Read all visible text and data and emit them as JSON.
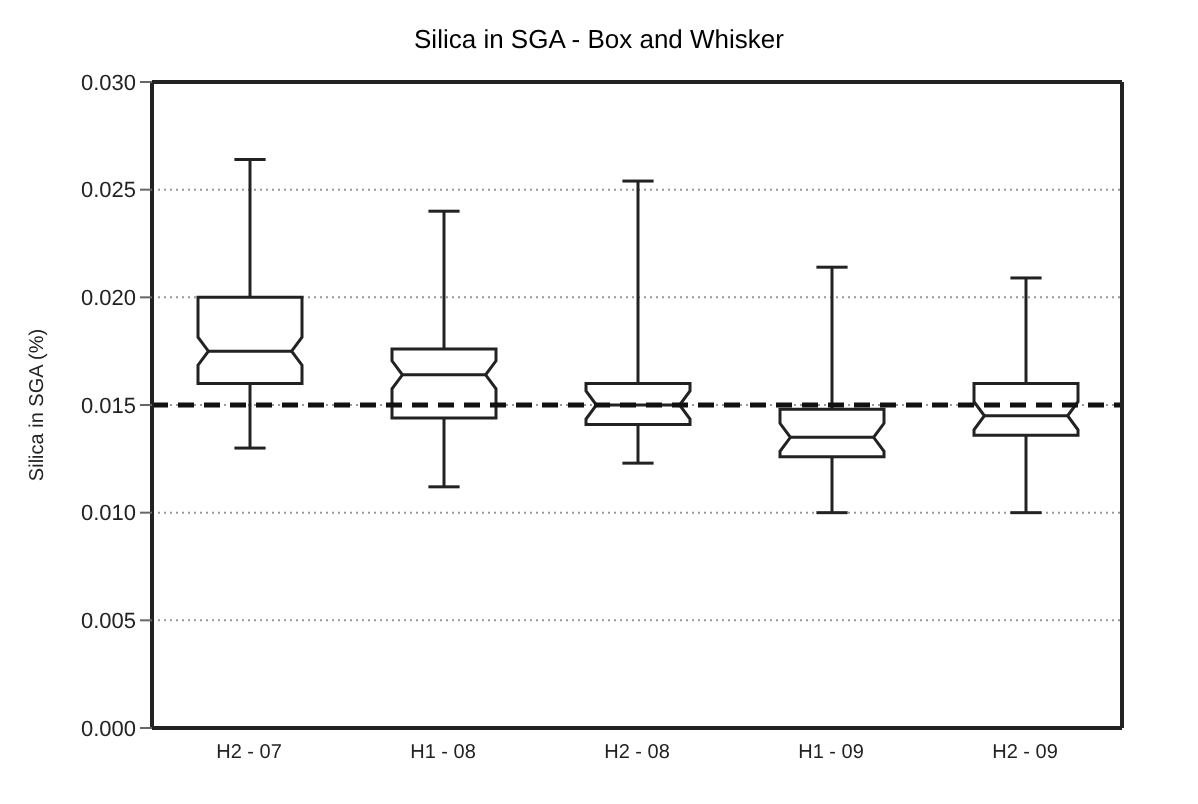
{
  "chart_data": {
    "type": "box",
    "title": "Silica in SGA - Box and Whisker",
    "ylabel": "Silica in SGA (%)",
    "categories": [
      "H2 - 07",
      "H1 - 08",
      "H2 - 08",
      "H1 - 09",
      "H2 - 09"
    ],
    "boxes": [
      {
        "low": 0.013,
        "q1": 0.016,
        "median": 0.0175,
        "q3": 0.02,
        "high": 0.0264
      },
      {
        "low": 0.0112,
        "q1": 0.0144,
        "median": 0.0164,
        "q3": 0.0176,
        "high": 0.024
      },
      {
        "low": 0.0123,
        "q1": 0.0141,
        "median": 0.015,
        "q3": 0.016,
        "high": 0.0254
      },
      {
        "low": 0.01,
        "q1": 0.0126,
        "median": 0.0135,
        "q3": 0.0148,
        "high": 0.0214
      },
      {
        "low": 0.01,
        "q1": 0.0136,
        "median": 0.0145,
        "q3": 0.016,
        "high": 0.0209
      }
    ],
    "color": "#222222",
    "ylim": [
      0,
      0.03
    ],
    "yticks": [
      {
        "value": 0,
        "label": "0.000"
      },
      {
        "value": 0.005,
        "label": "0.005"
      },
      {
        "value": 0.01,
        "label": "0.010"
      },
      {
        "value": 0.015,
        "label": "0.015"
      },
      {
        "value": 0.02,
        "label": "0.020"
      },
      {
        "value": 0.025,
        "label": "0.025"
      },
      {
        "value": 0.03,
        "label": "0.030"
      }
    ],
    "grid": "y",
    "ref_lines": [
      {
        "axis": "y",
        "value": 0.015,
        "color": "#111111",
        "line_style": "dashed"
      }
    ]
  }
}
